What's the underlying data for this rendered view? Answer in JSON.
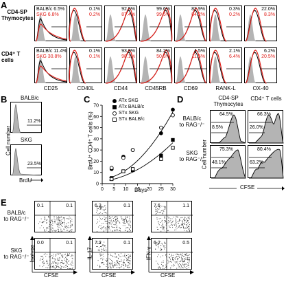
{
  "panel_letters": [
    "A",
    "B",
    "C",
    "D",
    "E"
  ],
  "panelA": {
    "row_labels": [
      "CD4-SP\nThymocytes",
      "CD4⁺ T cells"
    ],
    "row1_legend": {
      "balb": "BALB/c 6.5%",
      "skg": "SKG 6.8%"
    },
    "row2_legend": {
      "balb": "BALB/c 11.4%",
      "skg": "SKG 30.8%"
    },
    "markers": [
      "CD25",
      "CD40L",
      "CD44",
      "CD45RB",
      "CD69",
      "RANK-L",
      "OX-40"
    ],
    "row1_values": [
      {
        "balb": "",
        "skg": ""
      },
      {
        "balb": "0.1%",
        "skg": "0.2%"
      },
      {
        "balb": "92.5%",
        "skg": "87.4%"
      },
      {
        "balb": "99.6%",
        "skg": "99.5%"
      },
      {
        "balb": "82.9%",
        "skg": "84.2%"
      },
      {
        "balb": "0.3%",
        "skg": "0.2%"
      },
      {
        "balb": "22.0%",
        "skg": "8.3%"
      }
    ],
    "row2_values": [
      {
        "balb": "",
        "skg": ""
      },
      {
        "balb": "0.1%",
        "skg": "0.1%"
      },
      {
        "balb": "93.9%",
        "skg": "98.1%"
      },
      {
        "balb": "84.2%",
        "skg": "50.3%"
      },
      {
        "balb": "4.5%",
        "skg": "11.5%"
      },
      {
        "balb": "2.1%",
        "skg": "6.4%"
      },
      {
        "balb": "6.2%",
        "skg": "20.5%"
      }
    ],
    "colors": {
      "balb": "#000000",
      "skg": "#e0201b",
      "isotype": "#b4b4b4"
    }
  },
  "panelB": {
    "labels": [
      "BALB/c",
      "SKG"
    ],
    "values": [
      "11.2%",
      "23.5%"
    ],
    "ylabel": "Cell number",
    "xlabel": "BrdU"
  },
  "chart_data": {
    "type": "scatter",
    "xlabel": "Days",
    "ylabel": "BrdU⁺ CD4⁺ T cells (%)",
    "xlim": [
      0,
      30
    ],
    "ylim": [
      0,
      70
    ],
    "xticks": [
      "0",
      "5",
      "10",
      "15",
      "20",
      "25",
      "30"
    ],
    "yticks": [
      "0",
      "10",
      "20",
      "30",
      "40",
      "50",
      "60",
      "70"
    ],
    "series": [
      {
        "name": "ATx SKG",
        "marker": "filled-circle",
        "x": [
          4,
          9,
          13,
          25,
          30
        ],
        "y": [
          13,
          24,
          30,
          45,
          66
        ]
      },
      {
        "name": "ATx BALB/c",
        "marker": "filled-square",
        "x": [
          4,
          9,
          13,
          25,
          30
        ],
        "y": [
          5,
          11,
          12,
          25,
          39
        ]
      },
      {
        "name": "STx SKG",
        "marker": "open-circle",
        "x": [
          4,
          9,
          13,
          25,
          30
        ],
        "y": [
          14,
          23,
          30,
          50,
          61
        ]
      },
      {
        "name": "STx BALB/c",
        "marker": "open-square",
        "x": [
          4,
          9,
          13,
          25,
          30
        ],
        "y": [
          4,
          11,
          13,
          22,
          32
        ]
      }
    ]
  },
  "panelD": {
    "col_labels": [
      "CD4-SP\nThymocytes",
      "CD4⁺ T cells"
    ],
    "row_labels": [
      "BALB/c\nto RAG⁻/⁻",
      "SKG\nto RAG⁻/⁻"
    ],
    "ylabel": "Cell number",
    "xlabel": "CFSE",
    "values": [
      [
        "64.5%",
        "8.5%",
        "66.3%",
        "26.0%"
      ],
      [
        "75.3%",
        "48.1%",
        "80.4%",
        "63.2%"
      ]
    ]
  },
  "panelE": {
    "row_labels": [
      "BALB/c\nto RAG⁻/⁻",
      "SKG\nto RAG⁻/⁻"
    ],
    "ylabels": [
      "Isotype",
      "IL-17",
      "IFN-γ"
    ],
    "xlabel": "CFSE",
    "row1": [
      [
        "0.1",
        "0.1"
      ],
      [
        "6.3",
        "0.1"
      ],
      [
        "7.6",
        "1.1"
      ]
    ],
    "row2": [
      [
        "0.0",
        "0.1"
      ],
      [
        "7.2",
        "0.1"
      ],
      [
        "6.2",
        "0.5"
      ]
    ]
  }
}
